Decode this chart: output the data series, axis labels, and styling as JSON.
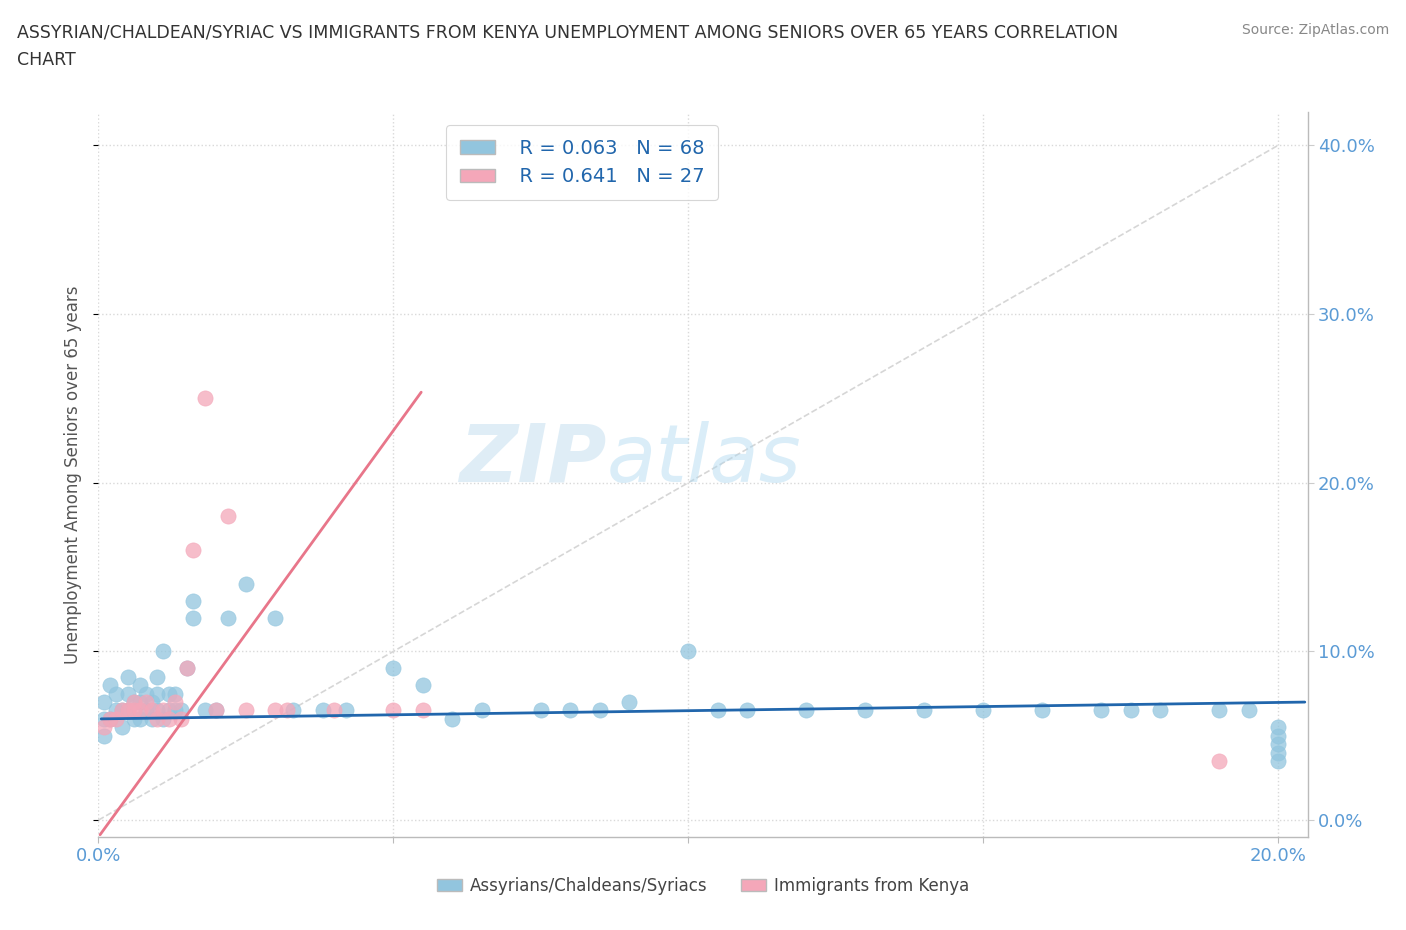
{
  "title_line1": "ASSYRIAN/CHALDEAN/SYRIAC VS IMMIGRANTS FROM KENYA UNEMPLOYMENT AMONG SENIORS OVER 65 YEARS CORRELATION",
  "title_line2": "CHART",
  "source": "Source: ZipAtlas.com",
  "ylabel": "Unemployment Among Seniors over 65 years",
  "xlim": [
    0.0,
    0.205
  ],
  "ylim": [
    -0.01,
    0.42
  ],
  "background_color": "#ffffff",
  "watermark_text": "ZIPatlas",
  "legend_R1": "0.063",
  "legend_N1": "68",
  "legend_R2": "0.641",
  "legend_N2": "27",
  "color_blue": "#92c5de",
  "color_blue_edge": "#92c5de",
  "color_pink": "#f4a7b9",
  "color_pink_edge": "#f4a7b9",
  "trendline_blue_color": "#2166ac",
  "trendline_pink_color": "#e8768a",
  "trendline_diagonal_color": "#cccccc",
  "tick_color": "#5b9bd5",
  "grid_color": "#d9d9d9",
  "legend_text_color": "#2166ac",
  "blue_x": [
    0.001,
    0.001,
    0.001,
    0.002,
    0.002,
    0.003,
    0.003,
    0.004,
    0.004,
    0.005,
    0.005,
    0.005,
    0.006,
    0.006,
    0.007,
    0.007,
    0.007,
    0.008,
    0.008,
    0.009,
    0.009,
    0.01,
    0.01,
    0.01,
    0.011,
    0.011,
    0.012,
    0.012,
    0.013,
    0.013,
    0.014,
    0.015,
    0.016,
    0.016,
    0.018,
    0.02,
    0.022,
    0.025,
    0.03,
    0.033,
    0.038,
    0.042,
    0.05,
    0.055,
    0.06,
    0.065,
    0.075,
    0.08,
    0.085,
    0.09,
    0.1,
    0.105,
    0.11,
    0.12,
    0.13,
    0.14,
    0.15,
    0.16,
    0.17,
    0.175,
    0.18,
    0.19,
    0.195,
    0.2,
    0.2,
    0.2,
    0.2,
    0.2
  ],
  "blue_y": [
    0.06,
    0.07,
    0.05,
    0.06,
    0.08,
    0.065,
    0.075,
    0.065,
    0.055,
    0.065,
    0.075,
    0.085,
    0.06,
    0.07,
    0.06,
    0.07,
    0.08,
    0.065,
    0.075,
    0.06,
    0.07,
    0.065,
    0.075,
    0.085,
    0.06,
    0.1,
    0.065,
    0.075,
    0.065,
    0.075,
    0.065,
    0.09,
    0.13,
    0.12,
    0.065,
    0.065,
    0.12,
    0.14,
    0.12,
    0.065,
    0.065,
    0.065,
    0.09,
    0.08,
    0.06,
    0.065,
    0.065,
    0.065,
    0.065,
    0.07,
    0.1,
    0.065,
    0.065,
    0.065,
    0.065,
    0.065,
    0.065,
    0.065,
    0.065,
    0.065,
    0.065,
    0.065,
    0.065,
    0.04,
    0.045,
    0.05,
    0.055,
    0.035
  ],
  "pink_x": [
    0.001,
    0.002,
    0.003,
    0.004,
    0.005,
    0.006,
    0.006,
    0.007,
    0.008,
    0.009,
    0.01,
    0.011,
    0.012,
    0.013,
    0.014,
    0.015,
    0.016,
    0.018,
    0.02,
    0.022,
    0.025,
    0.03,
    0.032,
    0.04,
    0.05,
    0.055,
    0.19
  ],
  "pink_y": [
    0.055,
    0.06,
    0.06,
    0.065,
    0.065,
    0.065,
    0.07,
    0.065,
    0.07,
    0.065,
    0.06,
    0.065,
    0.06,
    0.07,
    0.06,
    0.09,
    0.16,
    0.25,
    0.065,
    0.18,
    0.065,
    0.065,
    0.065,
    0.065,
    0.065,
    0.065,
    0.035
  ],
  "pink_trendline_x0": 0.0,
  "pink_trendline_y0": -0.01,
  "pink_trendline_x1": 0.055,
  "pink_trendline_y1": 0.255,
  "blue_trendline_x0": 0.0,
  "blue_trendline_y0": 0.06,
  "blue_trendline_x1": 0.205,
  "blue_trendline_y1": 0.07
}
